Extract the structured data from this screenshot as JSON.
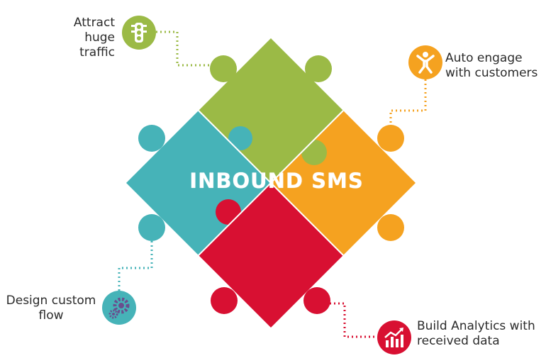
{
  "center": {
    "title": "INBOUND SMS"
  },
  "items": [
    {
      "lines": [
        "Attract",
        "huge",
        "traffic"
      ],
      "color": "#9BBA46",
      "icon": "traffic-light-icon"
    },
    {
      "lines": [
        "Auto engage",
        "with customers"
      ],
      "color": "#F5A220",
      "icon": "person-jumping-icon"
    },
    {
      "lines": [
        "Design custom",
        "flow"
      ],
      "color": "#46B3B8",
      "icon": "gears-icon"
    },
    {
      "lines": [
        "Build Analytics with",
        "received data"
      ],
      "color": "#D81032",
      "icon": "bar-chart-icon"
    }
  ]
}
